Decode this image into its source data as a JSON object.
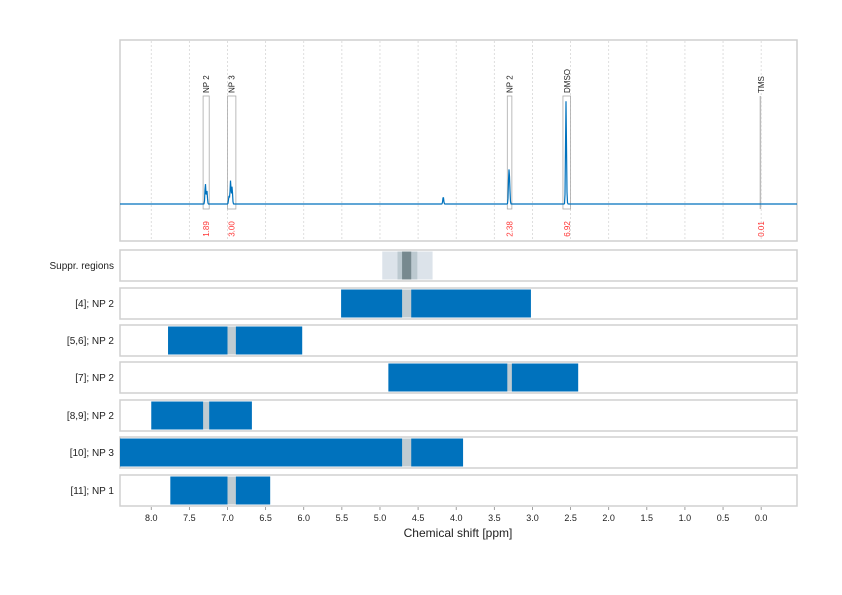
{
  "chart_data": {
    "type": "line",
    "xlabel": "Chemical shift [ppm]",
    "xlim": [
      8.41,
      -0.47
    ],
    "x_reversed": true,
    "x_ticks": [
      8.0,
      7.5,
      7.0,
      6.5,
      6.0,
      5.5,
      5.0,
      4.5,
      4.0,
      3.5,
      3.0,
      2.5,
      2.0,
      1.5,
      1.0,
      0.5,
      0.0
    ],
    "x_tick_labels": [
      "8.0",
      "7.5",
      "7.0",
      "6.5",
      "6.0",
      "5.5",
      "5.0",
      "4.5",
      "4.0",
      "3.5",
      "3.0",
      "2.5",
      "2.0",
      "1.5",
      "1.0",
      "0.5",
      "0.0"
    ],
    "grid": "vertical dashed every 0.5 ppm",
    "spectrum": {
      "color": "#0072bd",
      "peaks": [
        {
          "ppm": 7.29,
          "intensity": 0.2
        },
        {
          "ppm": 7.27,
          "intensity": 0.13
        },
        {
          "ppm": 6.96,
          "intensity": 0.23
        },
        {
          "ppm": 6.94,
          "intensity": 0.17
        },
        {
          "ppm": 6.98,
          "intensity": 0.08
        },
        {
          "ppm": 4.17,
          "intensity": 0.07
        },
        {
          "ppm": 3.31,
          "intensity": 0.28
        },
        {
          "ppm": 3.3,
          "intensity": 0.18
        },
        {
          "ppm": 2.56,
          "intensity": 1.0
        },
        {
          "ppm": 2.55,
          "intensity": 0.03
        }
      ]
    },
    "annotations": [
      {
        "label": "NP 2",
        "from": 7.32,
        "to": 7.24,
        "integral": "1.89"
      },
      {
        "label": "NP 3",
        "from": 7.0,
        "to": 6.89,
        "integral": "3.00"
      },
      {
        "label": "NP 2",
        "from": 3.33,
        "to": 3.27,
        "integral": "2.38"
      },
      {
        "label": "DMSO",
        "from": 2.6,
        "to": 2.5,
        "integral": "6.92"
      },
      {
        "label": "TMS",
        "from": 0.01,
        "to": 0.0,
        "integral": "0.01"
      }
    ],
    "integral_color": "#ff3333",
    "suppressed_regions": {
      "label": "Suppr. regions",
      "bands": [
        {
          "from": 4.97,
          "to": 4.31,
          "color": "#dce3ea"
        },
        {
          "from": 4.77,
          "to": 4.51,
          "color": "#bcc9d0"
        },
        {
          "from": 4.71,
          "to": 4.59,
          "color": "#77898f"
        }
      ]
    },
    "rows": [
      {
        "label": "[4]; NP 2",
        "from": 5.51,
        "to": 3.02,
        "gap": [
          4.71,
          4.59
        ]
      },
      {
        "label": "[5,6]; NP 2",
        "from": 7.78,
        "to": 6.02,
        "gap": [
          7.0,
          6.89
        ]
      },
      {
        "label": "[7]; NP 2",
        "from": 4.89,
        "to": 2.4,
        "gap": [
          3.33,
          3.27
        ]
      },
      {
        "label": "[8,9]; NP 2",
        "from": 8.0,
        "to": 6.68,
        "gap": [
          7.32,
          7.24
        ]
      },
      {
        "label": "[10]; NP 3",
        "from": 8.41,
        "to": 3.91,
        "gap": [
          4.71,
          4.59
        ]
      },
      {
        "label": "[11]; NP 1",
        "from": 7.75,
        "to": 6.44,
        "gap": [
          7.0,
          6.89
        ]
      }
    ],
    "bar_color": "#0072bd",
    "gap_color": "#bfcbd1"
  }
}
